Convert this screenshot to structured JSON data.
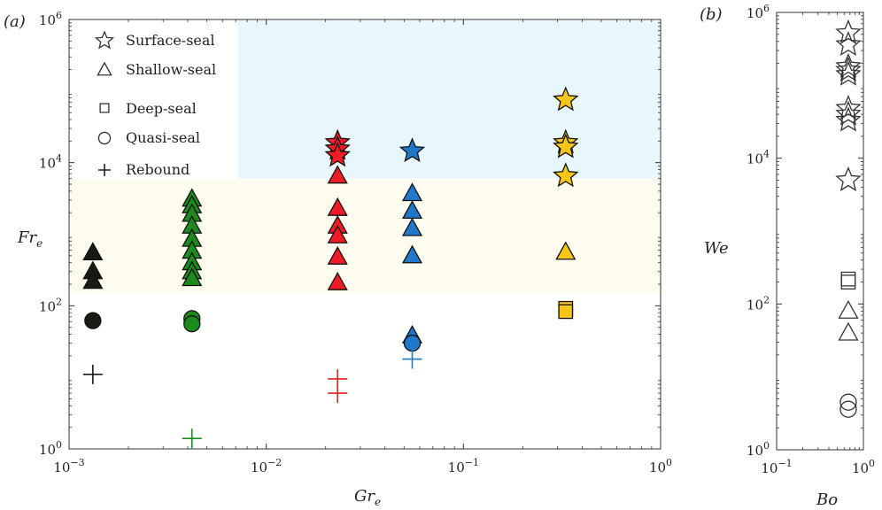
{
  "panel_a_label": "(a)",
  "panel_b_label": "(b)",
  "legend": {
    "surface_seal": "Surface-seal",
    "shallow_seal": "Shallow-seal",
    "deep_seal": "Deep-seal",
    "quasi_seal": "Quasi-seal",
    "rebound": "Rebound"
  },
  "colors": {
    "black": "#1a1a14",
    "green": "#1c8a1c",
    "red": "#ee1c24",
    "blue": "#1f78c8",
    "yellow": "#f5c518",
    "surface_region": "#e8f7fb",
    "shallow_region": "#fdfcee"
  },
  "chart_data": [
    {
      "type": "scatter",
      "panel": "(a)",
      "xlabel": "Gr",
      "xlabel_sub": "e",
      "ylabel": "Fr",
      "ylabel_sub": "e",
      "x_scale": "log",
      "y_scale": "log",
      "xlim": [
        0.001,
        1
      ],
      "ylim": [
        1,
        1000000
      ],
      "x_ticks": [
        {
          "base": "10",
          "exp": "−3"
        },
        {
          "base": "10",
          "exp": "−2"
        },
        {
          "base": "10",
          "exp": "−1"
        },
        {
          "base": "10",
          "exp": "0"
        }
      ],
      "y_ticks": [
        {
          "base": "10",
          "exp": "0"
        },
        {
          "base": "10",
          "exp": "2"
        },
        {
          "base": "10",
          "exp": "4"
        },
        {
          "base": "10",
          "exp": "6"
        }
      ],
      "regions": [
        {
          "regime": "surface-seal",
          "x": [
            0.0071,
            1
          ],
          "y": [
            6000,
            1000000
          ]
        },
        {
          "regime": "shallow-seal",
          "x": [
            0.001,
            1
          ],
          "y": [
            150,
            6000
          ]
        }
      ],
      "series": [
        {
          "color": "black",
          "points": [
            {
              "x": 0.00132,
              "y": 550,
              "m": "triangle"
            },
            {
              "x": 0.00132,
              "y": 300,
              "m": "triangle"
            },
            {
              "x": 0.00132,
              "y": 220,
              "m": "triangle"
            },
            {
              "x": 0.00132,
              "y": 62,
              "m": "circle"
            },
            {
              "x": 0.00132,
              "y": 11,
              "m": "plus"
            }
          ]
        },
        {
          "color": "green",
          "points": [
            {
              "x": 0.0042,
              "y": 3100,
              "m": "triangle"
            },
            {
              "x": 0.0042,
              "y": 2500,
              "m": "triangle"
            },
            {
              "x": 0.0042,
              "y": 1900,
              "m": "triangle"
            },
            {
              "x": 0.0042,
              "y": 1300,
              "m": "triangle"
            },
            {
              "x": 0.0042,
              "y": 850,
              "m": "triangle"
            },
            {
              "x": 0.0042,
              "y": 580,
              "m": "triangle"
            },
            {
              "x": 0.0042,
              "y": 400,
              "m": "triangle"
            },
            {
              "x": 0.0042,
              "y": 300,
              "m": "triangle"
            },
            {
              "x": 0.0042,
              "y": 240,
              "m": "triangle"
            },
            {
              "x": 0.0042,
              "y": 66,
              "m": "circle"
            },
            {
              "x": 0.0042,
              "y": 56,
              "m": "circle"
            },
            {
              "x": 0.0042,
              "y": 1.4,
              "m": "plus"
            }
          ]
        },
        {
          "color": "red",
          "points": [
            {
              "x": 0.023,
              "y": 19000,
              "m": "star"
            },
            {
              "x": 0.023,
              "y": 15500,
              "m": "star"
            },
            {
              "x": 0.023,
              "y": 12500,
              "m": "star"
            },
            {
              "x": 0.023,
              "y": 6500,
              "m": "triangle"
            },
            {
              "x": 0.023,
              "y": 2300,
              "m": "triangle"
            },
            {
              "x": 0.023,
              "y": 1300,
              "m": "triangle"
            },
            {
              "x": 0.023,
              "y": 950,
              "m": "triangle"
            },
            {
              "x": 0.023,
              "y": 480,
              "m": "triangle"
            },
            {
              "x": 0.023,
              "y": 210,
              "m": "triangle"
            },
            {
              "x": 0.023,
              "y": 9.5,
              "m": "plus"
            },
            {
              "x": 0.023,
              "y": 6.0,
              "m": "plus"
            }
          ]
        },
        {
          "color": "blue",
          "points": [
            {
              "x": 0.055,
              "y": 14500,
              "m": "star"
            },
            {
              "x": 0.055,
              "y": 3700,
              "m": "triangle"
            },
            {
              "x": 0.055,
              "y": 2100,
              "m": "triangle"
            },
            {
              "x": 0.055,
              "y": 1200,
              "m": "triangle"
            },
            {
              "x": 0.055,
              "y": 500,
              "m": "triangle"
            },
            {
              "x": 0.055,
              "y": 38,
              "m": "triangle"
            },
            {
              "x": 0.055,
              "y": 30,
              "m": "circle"
            },
            {
              "x": 0.055,
              "y": 18,
              "m": "plus"
            }
          ]
        },
        {
          "color": "yellow",
          "points": [
            {
              "x": 0.33,
              "y": 75000,
              "m": "star"
            },
            {
              "x": 0.33,
              "y": 19000,
              "m": "star"
            },
            {
              "x": 0.33,
              "y": 16500,
              "m": "star"
            },
            {
              "x": 0.33,
              "y": 6500,
              "m": "star"
            },
            {
              "x": 0.33,
              "y": 560,
              "m": "triangle"
            },
            {
              "x": 0.33,
              "y": 92,
              "m": "square"
            },
            {
              "x": 0.33,
              "y": 83,
              "m": "square"
            }
          ]
        }
      ]
    },
    {
      "type": "scatter",
      "panel": "(b)",
      "xlabel": "Bo",
      "ylabel": "We",
      "x_scale": "log",
      "y_scale": "log",
      "xlim": [
        0.1,
        1
      ],
      "ylim": [
        1,
        1000000
      ],
      "x_ticks": [
        {
          "base": "10",
          "exp": "−1"
        },
        {
          "base": "10",
          "exp": "0"
        }
      ],
      "y_ticks": [
        {
          "base": "10",
          "exp": "0"
        },
        {
          "base": "10",
          "exp": "2"
        },
        {
          "base": "10",
          "exp": "4"
        },
        {
          "base": "10",
          "exp": "6"
        }
      ],
      "series": [
        {
          "color": "none",
          "points": [
            {
              "x": 0.67,
              "y": 520000,
              "m": "star"
            },
            {
              "x": 0.67,
              "y": 360000,
              "m": "star"
            },
            {
              "x": 0.67,
              "y": 180000,
              "m": "star"
            },
            {
              "x": 0.67,
              "y": 160000,
              "m": "star"
            },
            {
              "x": 0.67,
              "y": 140000,
              "m": "star"
            },
            {
              "x": 0.67,
              "y": 48000,
              "m": "star"
            },
            {
              "x": 0.67,
              "y": 40000,
              "m": "star"
            },
            {
              "x": 0.67,
              "y": 33000,
              "m": "star"
            },
            {
              "x": 0.67,
              "y": 5000,
              "m": "star"
            },
            {
              "x": 0.67,
              "y": 220,
              "m": "square"
            },
            {
              "x": 0.67,
              "y": 200,
              "m": "square"
            },
            {
              "x": 0.67,
              "y": 80,
              "m": "triangle"
            },
            {
              "x": 0.67,
              "y": 40,
              "m": "triangle"
            },
            {
              "x": 0.67,
              "y": 4.5,
              "m": "circle"
            },
            {
              "x": 0.67,
              "y": 3.6,
              "m": "circle"
            }
          ]
        }
      ]
    }
  ]
}
